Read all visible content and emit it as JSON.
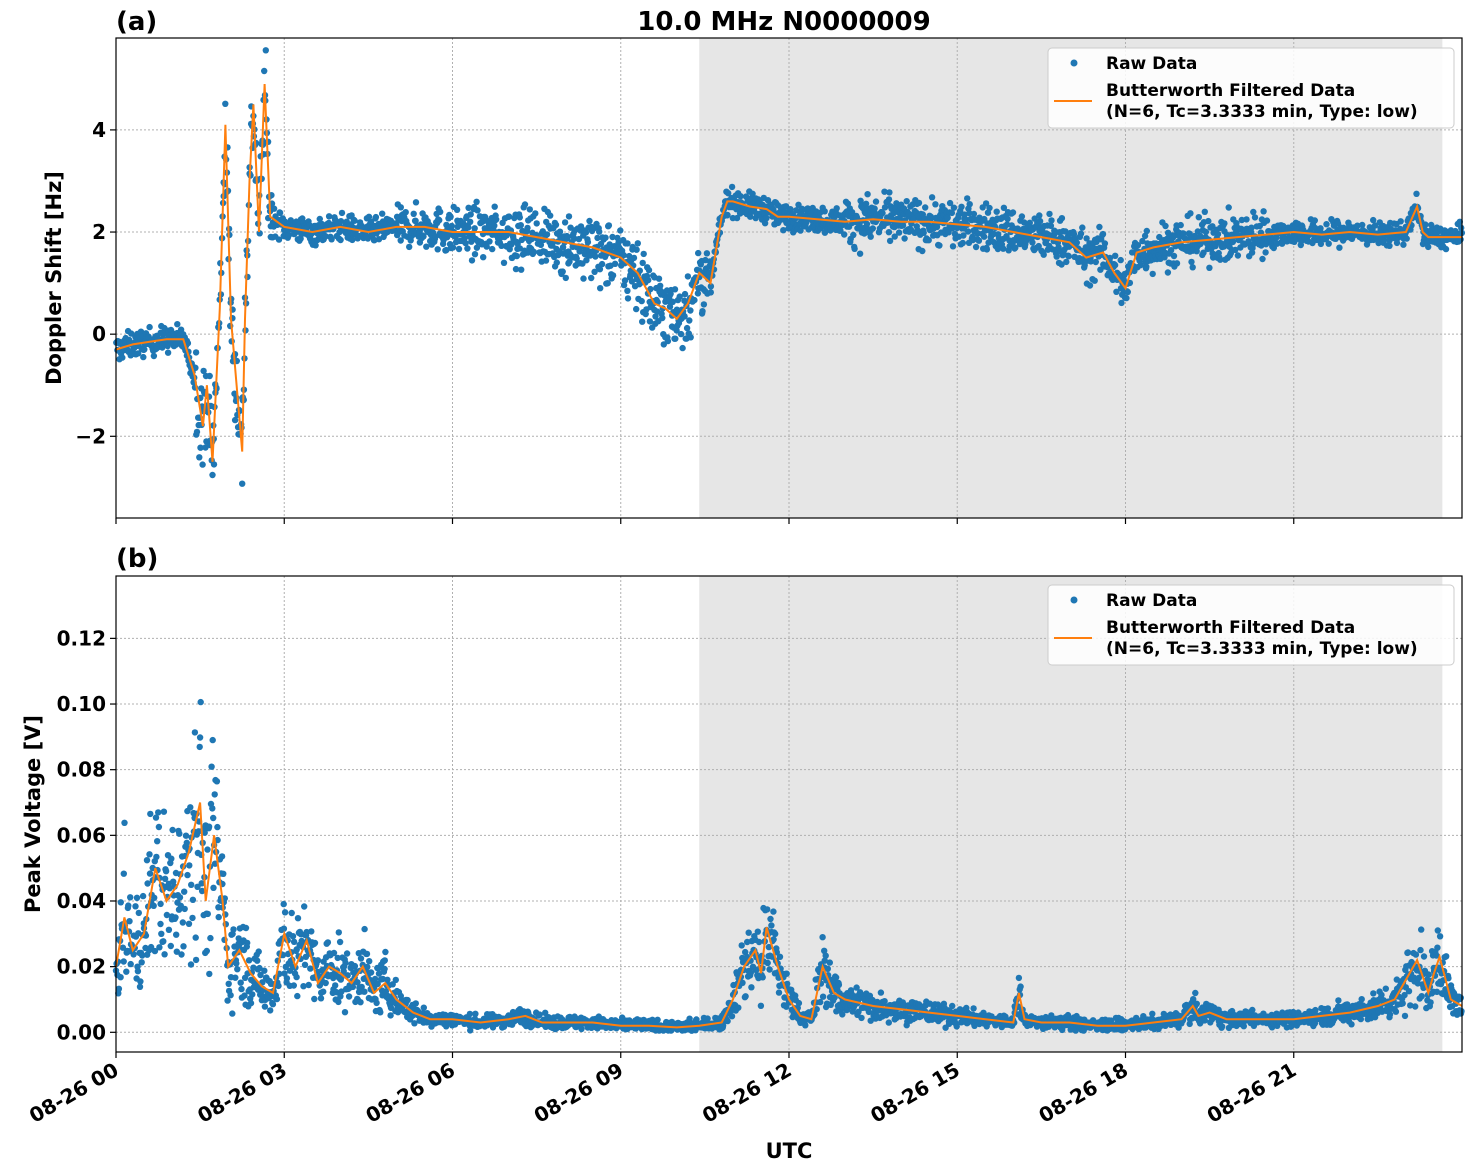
{
  "figure": {
    "title": "10.0 MHz N0000009",
    "xlabel": "UTC",
    "colors": {
      "raw": "#1f77b4",
      "filtered": "#ff7f0e",
      "shade": "#e6e6e6",
      "grid": "#b0b0b0"
    }
  },
  "chart_data": [
    {
      "type": "scatter",
      "panel_label": "(a)",
      "ylabel": "Doppler Shift [Hz]",
      "xlim_hours": [
        0,
        24
      ],
      "ylim": [
        -3.6,
        5.8
      ],
      "yticks": [
        -2,
        0,
        2,
        4
      ],
      "ytick_labels": [
        "−2",
        "0",
        "2",
        "4"
      ],
      "grid": true,
      "legend_position": "top-right",
      "shaded_region_hours": [
        10.4,
        23.65
      ],
      "legend": {
        "raw": "Raw Data",
        "filtered_line1": "Butterworth Filtered Data",
        "filtered_line2": "(N=6, Tc=3.3333 min, Type: low)"
      },
      "series": [
        {
          "name": "Butterworth Filtered Data",
          "x": [
            0,
            0.3,
            0.6,
            0.9,
            1.2,
            1.4,
            1.55,
            1.62,
            1.72,
            1.85,
            1.95,
            2.05,
            2.15,
            2.25,
            2.3,
            2.38,
            2.45,
            2.55,
            2.65,
            2.75,
            3.0,
            3.5,
            4.0,
            4.5,
            5.0,
            5.5,
            6.0,
            6.5,
            7.0,
            7.5,
            8.0,
            8.5,
            9.0,
            9.3,
            9.6,
            9.8,
            10.0,
            10.2,
            10.4,
            10.6,
            10.8,
            10.9,
            11.0,
            11.3,
            11.6,
            11.8,
            12.0,
            12.5,
            13.0,
            13.5,
            14.0,
            14.5,
            15.0,
            15.5,
            16.0,
            16.5,
            17.0,
            17.3,
            17.6,
            17.8,
            18.0,
            18.2,
            18.5,
            19.0,
            19.5,
            20.0,
            20.5,
            21.0,
            21.5,
            22.0,
            22.5,
            23.0,
            23.2,
            23.3,
            23.4,
            23.6,
            24.0
          ],
          "y": [
            -0.3,
            -0.2,
            -0.15,
            -0.1,
            -0.1,
            -0.8,
            -1.8,
            -1.0,
            -2.5,
            0.5,
            4.1,
            0.3,
            -1.0,
            -2.3,
            0.3,
            3.0,
            4.5,
            2.0,
            4.9,
            2.3,
            2.1,
            2.0,
            2.1,
            2.0,
            2.1,
            2.1,
            2.0,
            2.0,
            2.0,
            1.9,
            1.8,
            1.7,
            1.5,
            1.2,
            0.6,
            0.5,
            0.3,
            0.6,
            1.2,
            1.0,
            2.3,
            2.6,
            2.6,
            2.5,
            2.45,
            2.3,
            2.3,
            2.25,
            2.2,
            2.25,
            2.2,
            2.2,
            2.15,
            2.1,
            2.0,
            1.9,
            1.8,
            1.5,
            1.6,
            1.2,
            0.9,
            1.6,
            1.7,
            1.8,
            1.85,
            1.9,
            1.95,
            2.0,
            1.95,
            2.0,
            1.95,
            2.0,
            2.5,
            2.0,
            1.9,
            1.9,
            1.9
          ]
        }
      ]
    },
    {
      "type": "scatter",
      "panel_label": "(b)",
      "ylabel": "Peak Voltage [V]",
      "xlim_hours": [
        0,
        24
      ],
      "ylim": [
        -0.006,
        0.139
      ],
      "yticks": [
        0,
        0.02,
        0.04,
        0.06,
        0.08,
        0.1,
        0.12
      ],
      "ytick_labels": [
        "0.00",
        "0.02",
        "0.04",
        "0.06",
        "0.08",
        "0.10",
        "0.12"
      ],
      "xticks_hours": [
        0,
        3,
        6,
        9,
        12,
        15,
        18,
        21
      ],
      "xtick_labels": [
        "08-26 00",
        "08-26 03",
        "08-26 06",
        "08-26 09",
        "08-26 12",
        "08-26 15",
        "08-26 18",
        "08-26 21"
      ],
      "grid": true,
      "legend_position": "top-right",
      "shaded_region_hours": [
        10.4,
        23.65
      ],
      "legend": {
        "raw": "Raw Data",
        "filtered_line1": "Butterworth Filtered Data",
        "filtered_line2": "(N=6, Tc=3.3333 min, Type: low)"
      },
      "series": [
        {
          "name": "Butterworth Filtered Data",
          "x": [
            0,
            0.15,
            0.3,
            0.5,
            0.7,
            0.9,
            1.1,
            1.3,
            1.5,
            1.6,
            1.75,
            1.9,
            2.0,
            2.2,
            2.4,
            2.6,
            2.8,
            3.0,
            3.2,
            3.4,
            3.6,
            3.8,
            4.0,
            4.2,
            4.4,
            4.6,
            4.8,
            5.0,
            5.3,
            5.6,
            6.0,
            6.5,
            7.0,
            7.3,
            7.6,
            8.0,
            8.5,
            9.0,
            9.5,
            10.0,
            10.4,
            10.8,
            11.0,
            11.2,
            11.4,
            11.5,
            11.6,
            11.8,
            12.0,
            12.2,
            12.4,
            12.6,
            12.8,
            13.0,
            13.5,
            14.0,
            14.5,
            15.0,
            15.5,
            16.0,
            16.1,
            16.2,
            16.5,
            17.0,
            17.5,
            18.0,
            18.5,
            19.0,
            19.2,
            19.3,
            19.5,
            19.8,
            20.0,
            20.5,
            21.0,
            21.5,
            22.0,
            22.5,
            22.8,
            23.0,
            23.2,
            23.4,
            23.5,
            23.6,
            23.8,
            24.0
          ],
          "y": [
            0.02,
            0.035,
            0.025,
            0.03,
            0.05,
            0.04,
            0.045,
            0.055,
            0.07,
            0.04,
            0.06,
            0.04,
            0.02,
            0.025,
            0.018,
            0.014,
            0.012,
            0.03,
            0.02,
            0.028,
            0.015,
            0.02,
            0.018,
            0.015,
            0.02,
            0.012,
            0.015,
            0.01,
            0.006,
            0.004,
            0.004,
            0.003,
            0.004,
            0.005,
            0.003,
            0.003,
            0.003,
            0.002,
            0.002,
            0.0015,
            0.002,
            0.003,
            0.01,
            0.02,
            0.025,
            0.018,
            0.032,
            0.02,
            0.01,
            0.005,
            0.004,
            0.02,
            0.012,
            0.01,
            0.008,
            0.007,
            0.006,
            0.005,
            0.004,
            0.003,
            0.012,
            0.004,
            0.003,
            0.003,
            0.002,
            0.002,
            0.003,
            0.004,
            0.008,
            0.005,
            0.006,
            0.004,
            0.004,
            0.004,
            0.004,
            0.005,
            0.006,
            0.008,
            0.01,
            0.016,
            0.022,
            0.012,
            0.018,
            0.023,
            0.01,
            0.008
          ]
        }
      ]
    }
  ]
}
